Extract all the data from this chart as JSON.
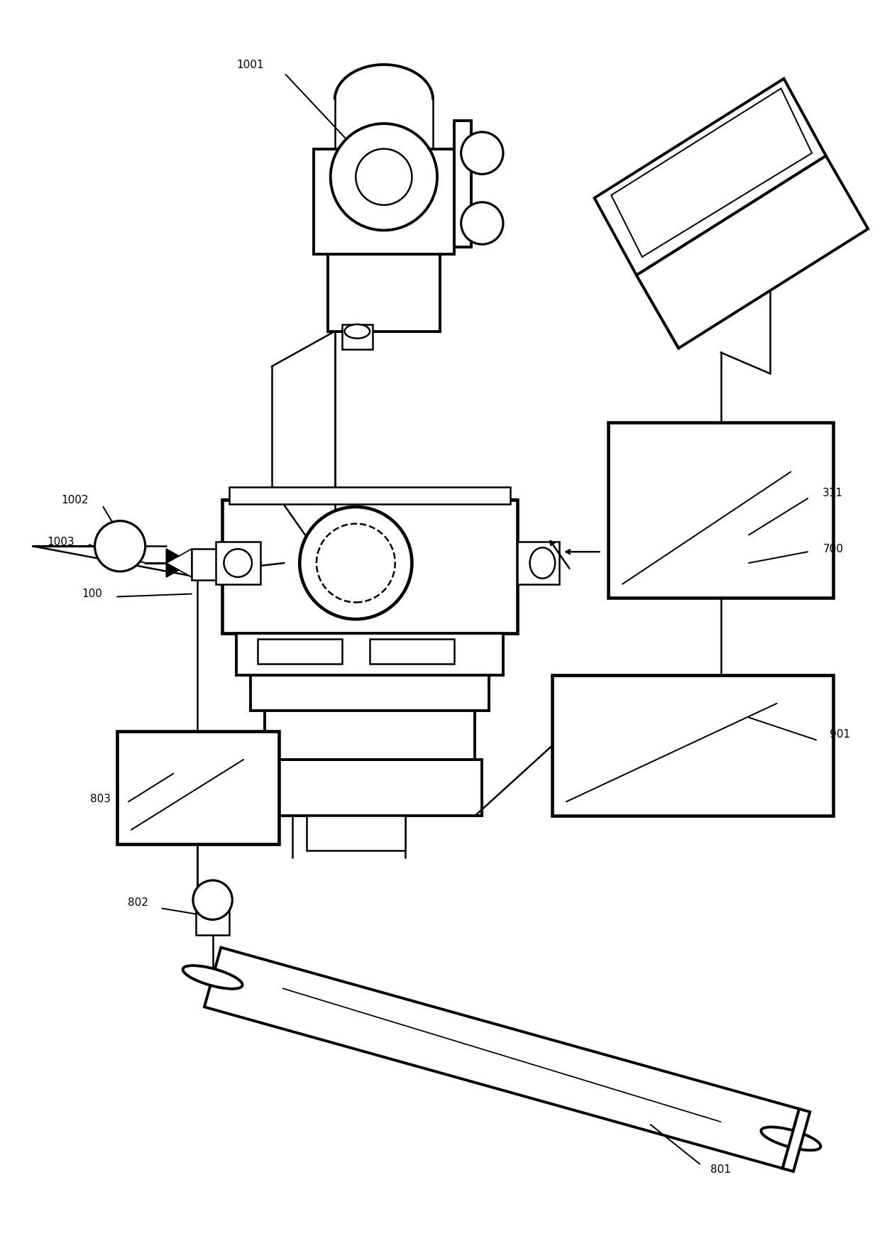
{
  "background_color": "#ffffff",
  "line_color": "#000000",
  "lw": 1.8,
  "fs": 11,
  "fig_w": 12.4,
  "fig_h": 17.72,
  "dpi": 100
}
